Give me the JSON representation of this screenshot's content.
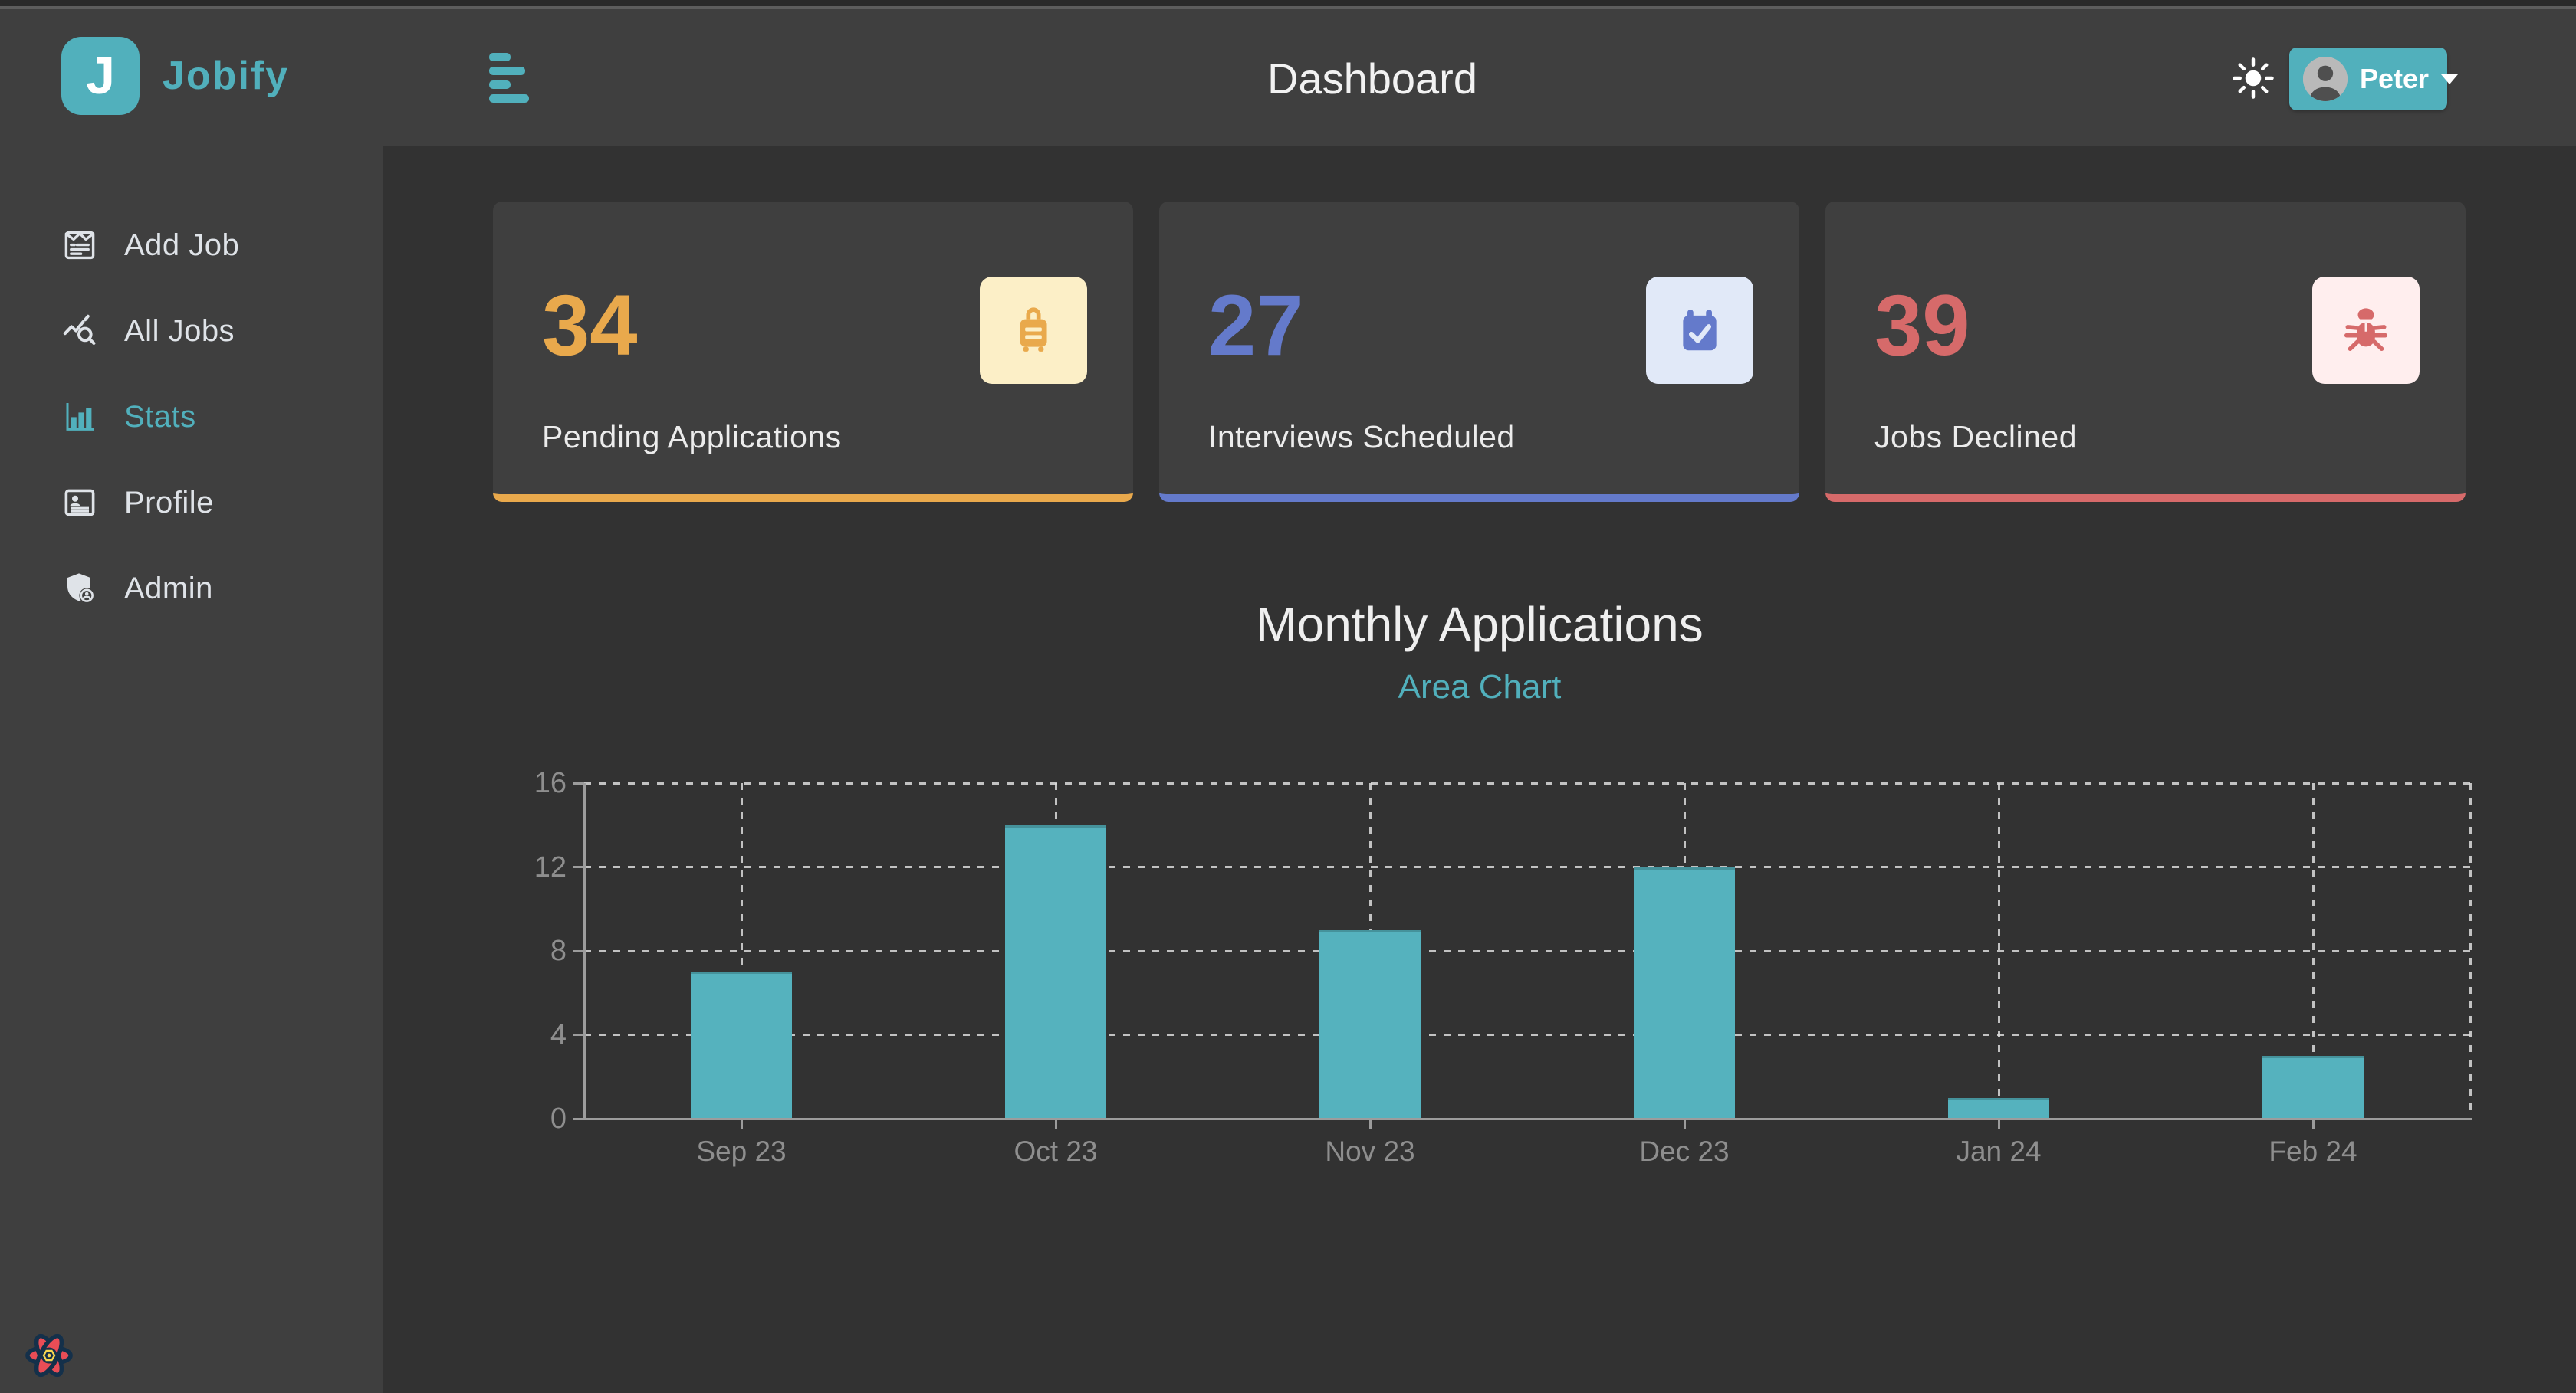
{
  "brand": {
    "logo_letter": "J",
    "name": "Jobify"
  },
  "topbar": {
    "title": "Dashboard",
    "user_name": "Peter"
  },
  "sidebar": {
    "items": [
      {
        "label": "Add Job",
        "icon": "form-icon",
        "active": false
      },
      {
        "label": "All Jobs",
        "icon": "chart-search-icon",
        "active": false
      },
      {
        "label": "Stats",
        "icon": "bar-chart-icon",
        "active": true
      },
      {
        "label": "Profile",
        "icon": "id-card-icon",
        "active": false
      },
      {
        "label": "Admin",
        "icon": "shield-user-icon",
        "active": false
      }
    ]
  },
  "stats_cards": [
    {
      "value": "34",
      "label": "Pending Applications",
      "icon": "suitcase-rolling-icon",
      "accent": "#e9a94c",
      "icon_bg": "#fcefc7"
    },
    {
      "value": "27",
      "label": "Interviews Scheduled",
      "icon": "calendar-check-icon",
      "accent": "#647acb",
      "icon_bg": "#e1e9f8"
    },
    {
      "value": "39",
      "label": "Jobs Declined",
      "icon": "bug-icon",
      "accent": "#d66a6a",
      "icon_bg": "#ffeeee"
    }
  ],
  "chart_section": {
    "title": "Monthly Applications",
    "chart_type_toggle": "Area Chart"
  },
  "chart_data": {
    "type": "bar",
    "title": "Monthly Applications",
    "categories": [
      "Sep 23",
      "Oct 23",
      "Nov 23",
      "Dec 23",
      "Jan 24",
      "Feb 24"
    ],
    "values": [
      7,
      14,
      9,
      12,
      1,
      3
    ],
    "xlabel": "",
    "ylabel": "",
    "ylim": [
      0,
      16
    ],
    "yticks": [
      0,
      4,
      8,
      12,
      16
    ],
    "grid": "dashed",
    "legend": "none",
    "bar_color": "#55b2be"
  },
  "colors": {
    "primary": "#51b0bc",
    "surface": "#3f3f3f",
    "background": "#323232",
    "text_light": "#ececec",
    "axis_gray": "#9c9c9c"
  }
}
